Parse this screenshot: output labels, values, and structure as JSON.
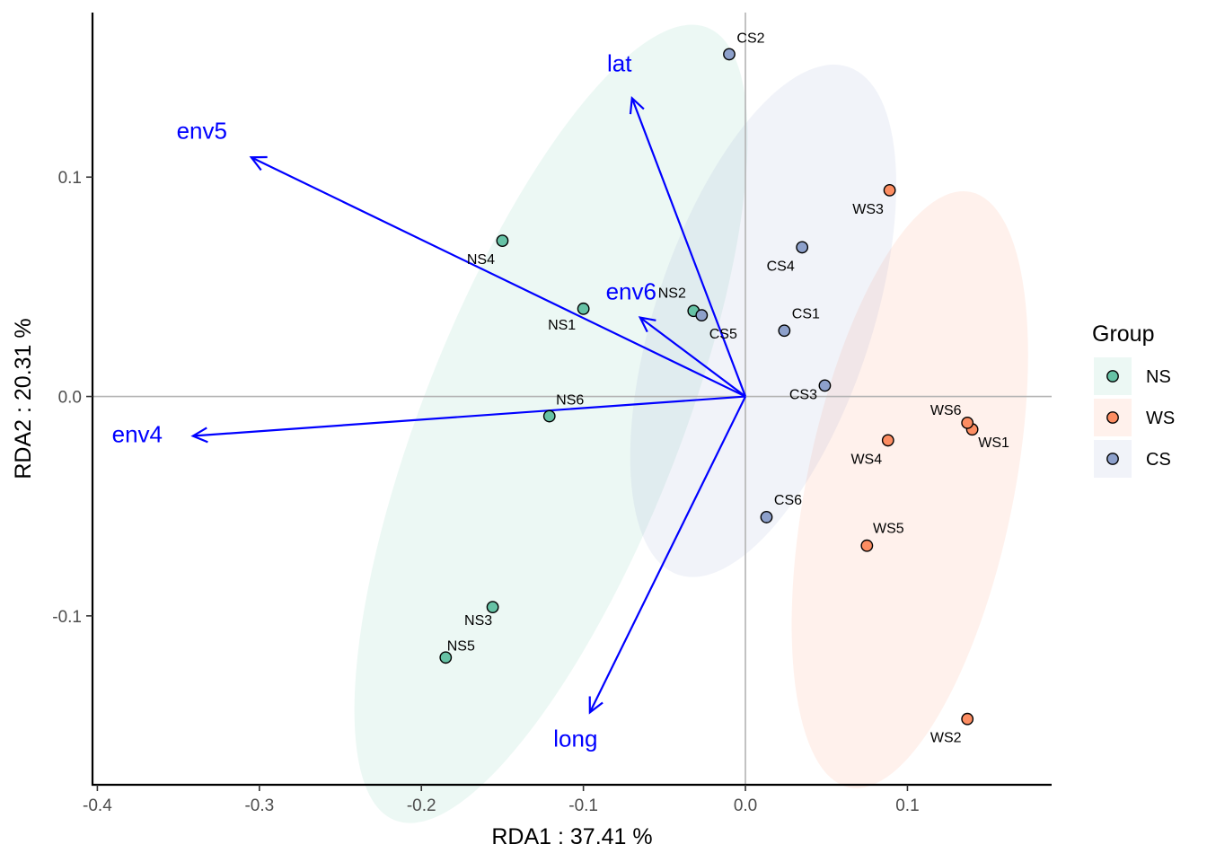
{
  "chart_data": {
    "type": "scatter",
    "xlabel": "RDA1 :  37.41 %",
    "ylabel": "RDA2 :  20.31 %",
    "xlim": [
      -0.403,
      0.189
    ],
    "ylim": [
      -0.177,
      0.175
    ],
    "xticks": [
      {
        "value": -0.4,
        "label": "-0.4"
      },
      {
        "value": -0.3,
        "label": "-0.3"
      },
      {
        "value": -0.2,
        "label": "-0.2"
      },
      {
        "value": -0.1,
        "label": "-0.1"
      },
      {
        "value": 0.0,
        "label": "0.0"
      },
      {
        "value": 0.1,
        "label": "0.1"
      }
    ],
    "yticks": [
      {
        "value": -0.1,
        "label": "-0.1"
      },
      {
        "value": 0.0,
        "label": "0.0"
      },
      {
        "value": 0.1,
        "label": "0.1"
      }
    ],
    "groups": [
      {
        "name": "NS",
        "color": "#66c2a5",
        "ellipse_color": "#66c2a5",
        "ellipse": {
          "cx": -0.12,
          "cy": -0.0125,
          "rx": 0.263,
          "ry": 0.0585,
          "angle_deg": -68.5
        },
        "points": [
          {
            "label": "NS1",
            "x": -0.1,
            "y": 0.04
          },
          {
            "label": "NS2",
            "x": -0.032,
            "y": 0.039
          },
          {
            "label": "NS3",
            "x": -0.156,
            "y": -0.096
          },
          {
            "label": "NS4",
            "x": -0.15,
            "y": 0.071
          },
          {
            "label": "NS5",
            "x": -0.185,
            "y": -0.119
          },
          {
            "label": "NS6",
            "x": -0.121,
            "y": -0.009
          }
        ]
      },
      {
        "name": "WS",
        "color": "#fc8d62",
        "ellipse_color": "#fc8d62",
        "ellipse": {
          "cx": 0.1015,
          "cy": -0.0425,
          "rx": 0.1876,
          "ry": 0.0472,
          "angle_deg": -78.5
        },
        "points": [
          {
            "label": "WS1",
            "x": 0.14,
            "y": -0.015
          },
          {
            "label": "WS2",
            "x": 0.137,
            "y": -0.147
          },
          {
            "label": "WS3",
            "x": 0.089,
            "y": 0.094
          },
          {
            "label": "WS4",
            "x": 0.088,
            "y": -0.02
          },
          {
            "label": "WS5",
            "x": 0.075,
            "y": -0.068
          },
          {
            "label": "WS6",
            "x": 0.137,
            "y": -0.012
          }
        ]
      },
      {
        "name": "CS",
        "color": "#8da0cb",
        "ellipse_color": "#8da0cb",
        "ellipse": {
          "cx": 0.011,
          "cy": 0.0345,
          "rx": 0.1653,
          "ry": 0.0492,
          "angle_deg": -71.5
        },
        "points": [
          {
            "label": "CS1",
            "x": 0.024,
            "y": 0.03
          },
          {
            "label": "CS2",
            "x": -0.01,
            "y": 0.156
          },
          {
            "label": "CS3",
            "x": 0.049,
            "y": 0.005
          },
          {
            "label": "CS4",
            "x": 0.035,
            "y": 0.068
          },
          {
            "label": "CS5",
            "x": -0.027,
            "y": 0.037
          },
          {
            "label": "CS6",
            "x": 0.013,
            "y": -0.055
          }
        ]
      }
    ],
    "arrows": [
      {
        "label": "env4",
        "x": -0.341,
        "y": -0.018
      },
      {
        "label": "env5",
        "x": -0.305,
        "y": 0.109
      },
      {
        "label": "env6",
        "x": -0.065,
        "y": 0.036
      },
      {
        "label": "lat",
        "x": -0.07,
        "y": 0.136
      },
      {
        "label": "long",
        "x": -0.096,
        "y": -0.144
      }
    ],
    "arrow_color": "#0000ff",
    "legend": {
      "title": "Group",
      "entries": [
        "NS",
        "WS",
        "CS"
      ],
      "position": "right"
    }
  }
}
